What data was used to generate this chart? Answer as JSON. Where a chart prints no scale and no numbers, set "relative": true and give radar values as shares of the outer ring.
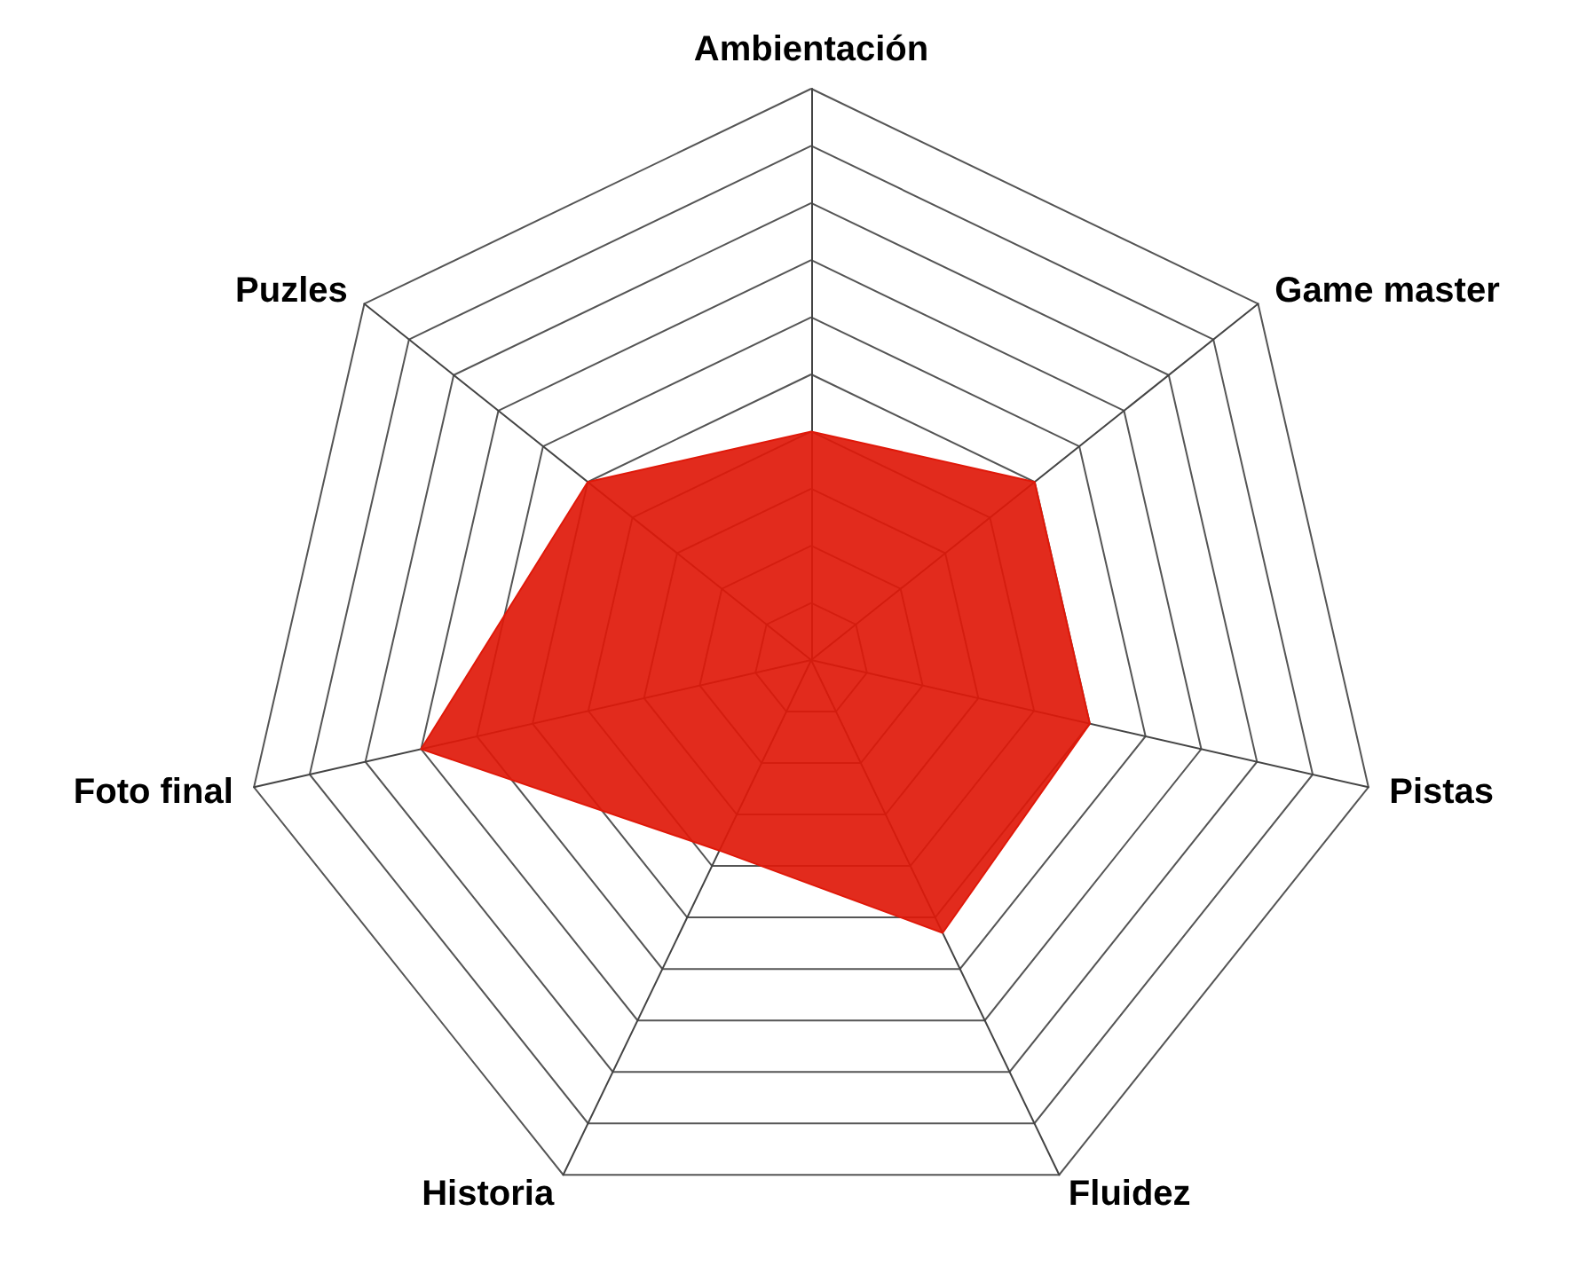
{
  "chart_data": {
    "type": "radar",
    "relative": true,
    "grid": true,
    "categories": [
      "Ambientación",
      "Game master",
      "Pistas",
      "Fluidez",
      "Historia",
      "Foto final",
      "Puzles"
    ],
    "series": [
      {
        "color": "#e0190a",
        "values": [
          0.4,
          0.5,
          0.5,
          0.53,
          0.37,
          0.7,
          0.5
        ]
      }
    ]
  }
}
